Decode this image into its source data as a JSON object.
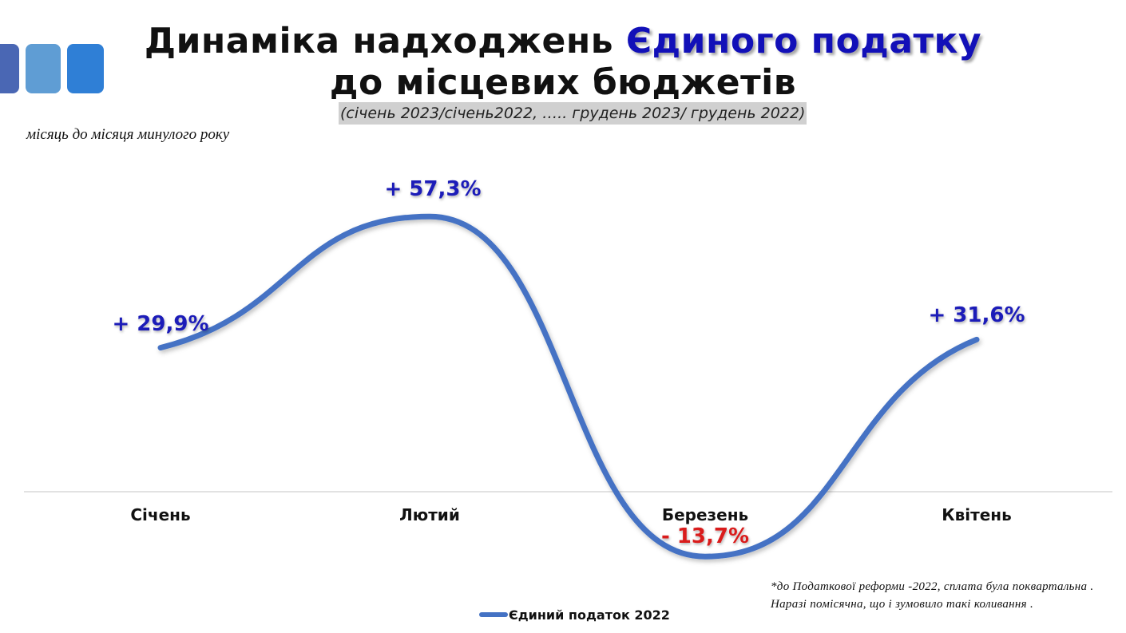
{
  "title": {
    "line1_prefix": "Динаміка надходжень ",
    "line1_accent": "Єдиного податку",
    "line2": "до місцевих бюджетів"
  },
  "subtitle": "(січень 2023/січень2022, ….. грудень 2023/ грудень 2022)",
  "period_note": "місяць до місяця минулого року",
  "footnote": {
    "line1": "*до Податкової реформи -2022, сплата була поквартальна .",
    "line2": "Наразі помісячна, що і зумовило такі коливання ."
  },
  "colors": {
    "accent": "#1210b8",
    "line": "#4472c4",
    "positive_label": "#1a1ab8",
    "negative_label": "#d91c1c",
    "deco": [
      "#4a67b4",
      "#5f9dd4",
      "#2f7fd6"
    ]
  },
  "chart_data": {
    "type": "line",
    "smooth": true,
    "categories": [
      "Січень",
      "Лютий",
      "Березень",
      "Квітень"
    ],
    "series": [
      {
        "name": "Єдиний податок 2022",
        "values": [
          29.9,
          57.3,
          -13.7,
          31.6
        ],
        "labels": [
          "+ 29,9%",
          "+ 57,3%",
          "- 13,7%",
          "+ 31,6%"
        ]
      }
    ],
    "title": "",
    "xlabel": "",
    "ylabel": "",
    "ylim": [
      -15,
      60
    ],
    "grid": false,
    "legend": "bottom-center"
  }
}
